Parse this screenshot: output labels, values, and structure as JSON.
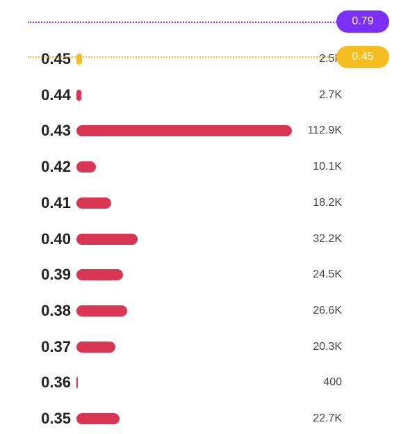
{
  "colors": {
    "bar": "#d93654",
    "current_bar": "#f5bd1f",
    "upper_marker": "#7b2ff7",
    "current_marker": "#f5bd1f"
  },
  "markers": {
    "upper": {
      "label": "0.79"
    },
    "current": {
      "label": "0.45"
    }
  },
  "levels": [
    {
      "price": "0.45",
      "volume_label": "2.5K",
      "volume": 2500,
      "highlight": true
    },
    {
      "price": "0.44",
      "volume_label": "2.7K",
      "volume": 2700
    },
    {
      "price": "0.43",
      "volume_label": "112.9K",
      "volume": 112900
    },
    {
      "price": "0.42",
      "volume_label": "10.1K",
      "volume": 10100
    },
    {
      "price": "0.41",
      "volume_label": "18.2K",
      "volume": 18200
    },
    {
      "price": "0.40",
      "volume_label": "32.2K",
      "volume": 32200
    },
    {
      "price": "0.39",
      "volume_label": "24.5K",
      "volume": 24500
    },
    {
      "price": "0.38",
      "volume_label": "26.6K",
      "volume": 26600
    },
    {
      "price": "0.37",
      "volume_label": "20.3K",
      "volume": 20300
    },
    {
      "price": "0.36",
      "volume_label": "400",
      "volume": 400
    },
    {
      "price": "0.35",
      "volume_label": "22.7K",
      "volume": 22700
    }
  ]
}
